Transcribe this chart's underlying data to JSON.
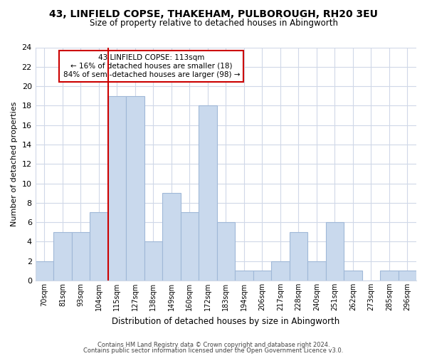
{
  "title": "43, LINFIELD COPSE, THAKEHAM, PULBOROUGH, RH20 3EU",
  "subtitle": "Size of property relative to detached houses in Abingworth",
  "xlabel": "Distribution of detached houses by size in Abingworth",
  "ylabel": "Number of detached properties",
  "bar_labels": [
    "70sqm",
    "81sqm",
    "93sqm",
    "104sqm",
    "115sqm",
    "127sqm",
    "138sqm",
    "149sqm",
    "160sqm",
    "172sqm",
    "183sqm",
    "194sqm",
    "206sqm",
    "217sqm",
    "228sqm",
    "240sqm",
    "251sqm",
    "262sqm",
    "273sqm",
    "285sqm",
    "296sqm"
  ],
  "bar_values": [
    2,
    5,
    5,
    7,
    19,
    19,
    4,
    9,
    7,
    18,
    6,
    1,
    1,
    2,
    5,
    2,
    6,
    1,
    0,
    1,
    1
  ],
  "ylim": [
    0,
    24
  ],
  "yticks": [
    0,
    2,
    4,
    6,
    8,
    10,
    12,
    14,
    16,
    18,
    20,
    22,
    24
  ],
  "bar_color": "#c9d9ed",
  "bar_edge_color": "#a0b8d8",
  "vline_x_index": 4,
  "vline_color": "#cc0000",
  "annotation_title": "43 LINFIELD COPSE: 113sqm",
  "annotation_line1": "← 16% of detached houses are smaller (18)",
  "annotation_line2": "84% of semi-detached houses are larger (98) →",
  "annotation_box_color": "#ffffff",
  "annotation_box_edge": "#cc0000",
  "footer1": "Contains HM Land Registry data © Crown copyright and database right 2024.",
  "footer2": "Contains public sector information licensed under the Open Government Licence v3.0.",
  "background_color": "#ffffff",
  "grid_color": "#d0d8e8"
}
